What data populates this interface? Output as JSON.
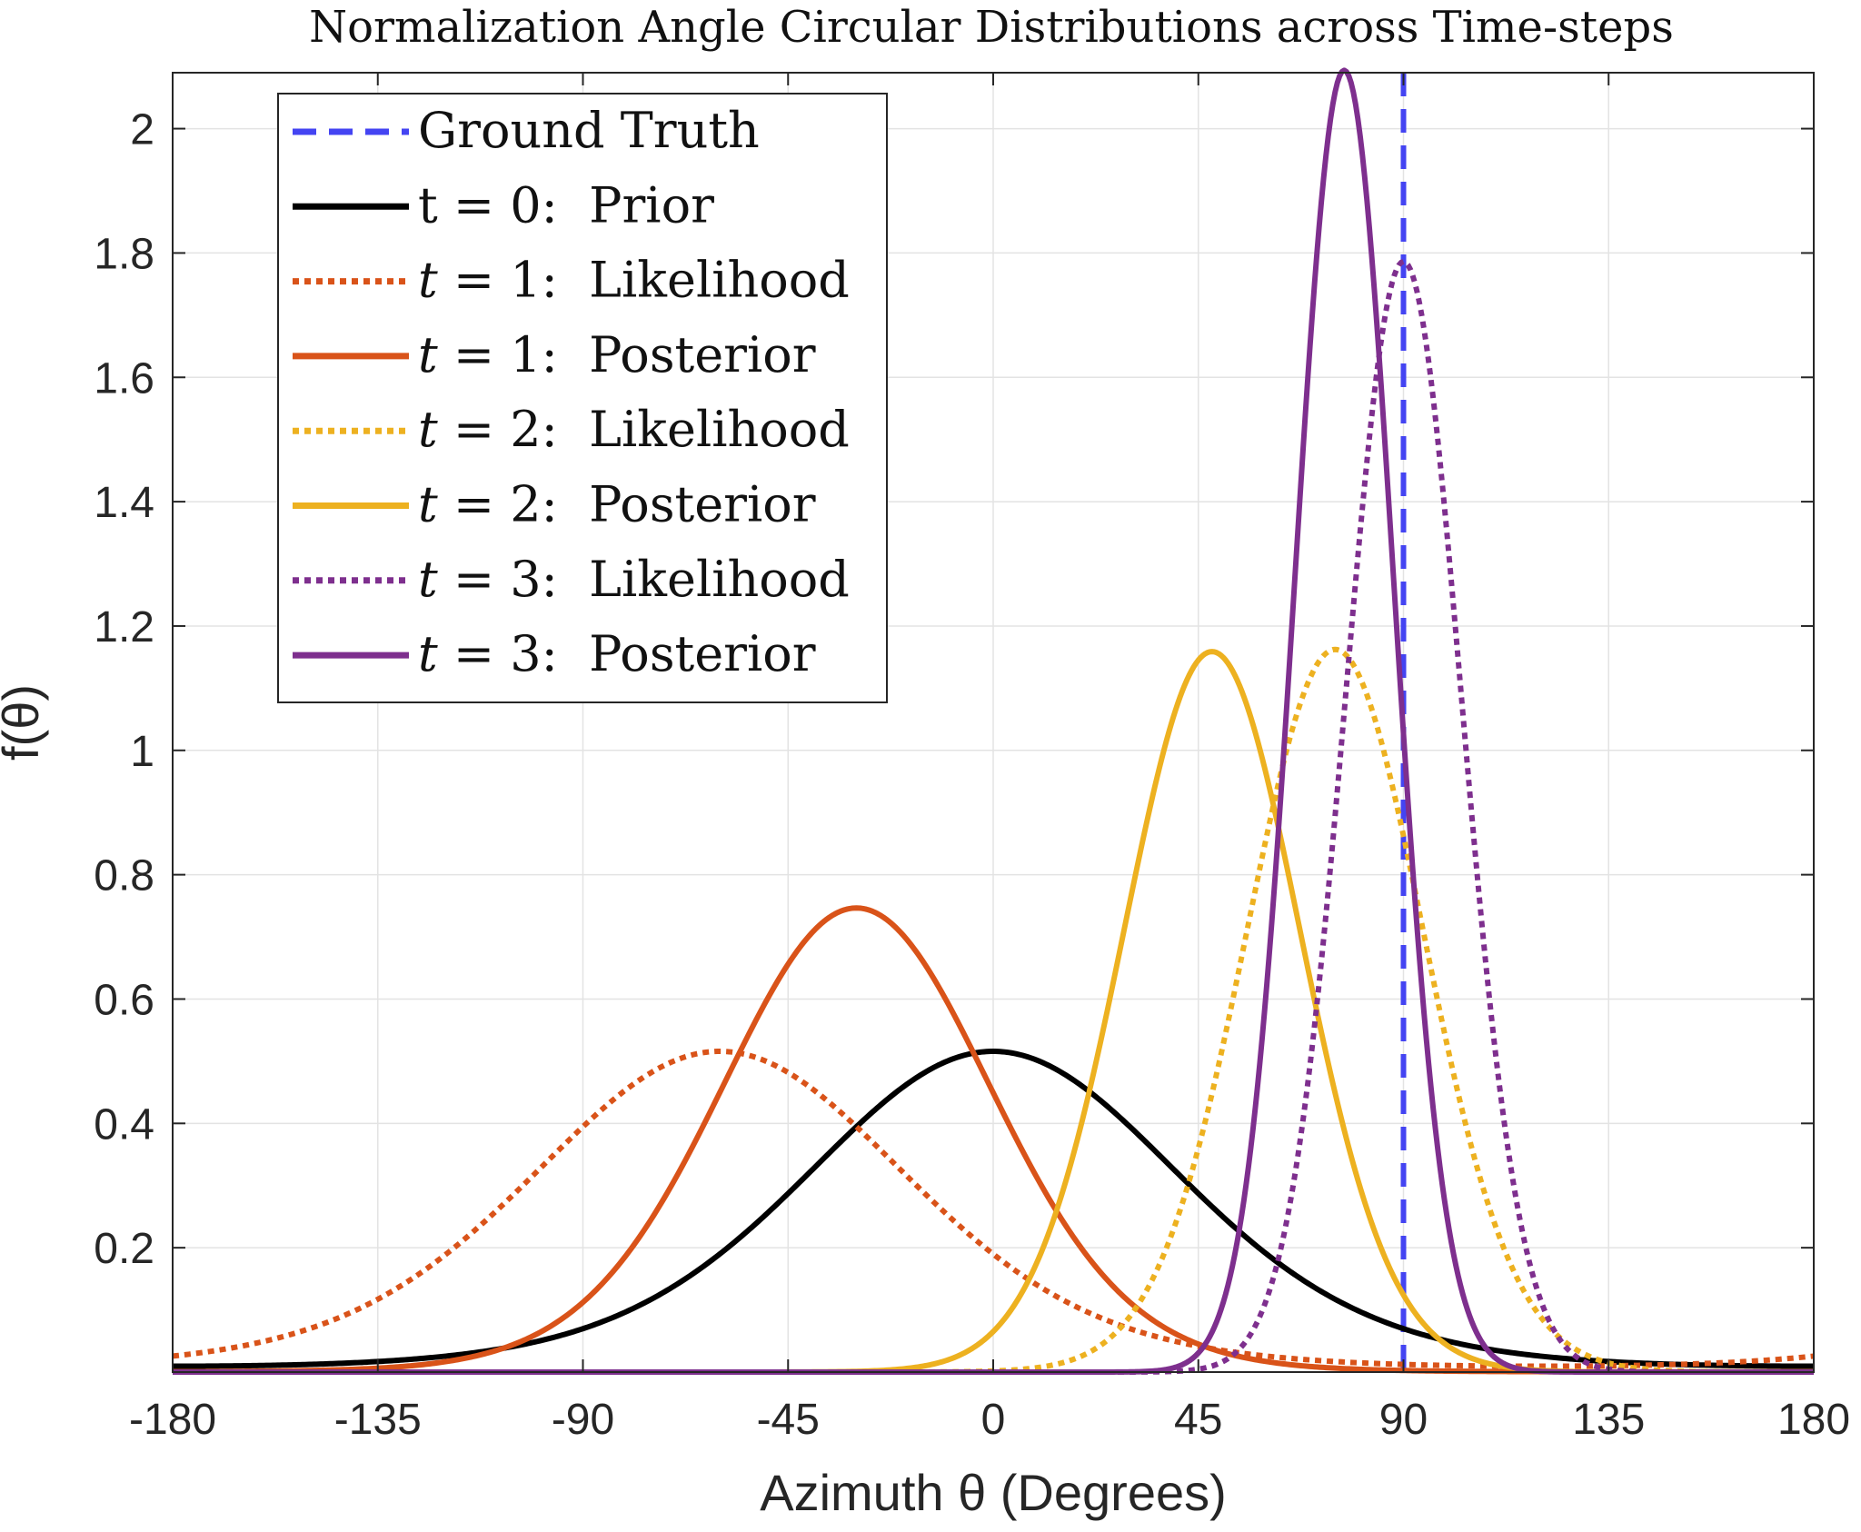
{
  "chart_data": {
    "type": "line",
    "title": "Normalization Angle Circular Distributions across Time-steps",
    "xlabel": "Azimuth θ (Degrees)",
    "ylabel": "f(θ)",
    "xlim": [
      -180,
      180
    ],
    "ylim": [
      0,
      2.09
    ],
    "grid": true,
    "legend_position": "top-left",
    "x_ticks": [
      -180,
      -135,
      -90,
      -45,
      0,
      45,
      90,
      135,
      180
    ],
    "x_tick_labels": [
      "-180",
      "-135",
      "-90",
      "-45",
      "0",
      "45",
      "90",
      "135",
      "180"
    ],
    "y_ticks": [
      0.2,
      0.4,
      0.6,
      0.8,
      1.0,
      1.2,
      1.4,
      1.6,
      1.8,
      2.0
    ],
    "y_tick_labels": [
      "0.2",
      "0.4",
      "0.6",
      "0.8",
      "1",
      "1.2",
      "1.4",
      "1.6",
      "1.8",
      "2"
    ],
    "series": [
      {
        "name": "Ground Truth",
        "label_main": "Ground Truth",
        "label_var": "",
        "kind": "vline",
        "x": 90,
        "color": "#4444f2",
        "dash": "dashed"
      },
      {
        "name": "t = 0: Prior",
        "label_main": "t = 0:  Prior",
        "label_var": "",
        "kind": "vonmises",
        "mu": 0,
        "kappa": 2.0,
        "color": "#000000",
        "dash": "solid"
      },
      {
        "name": "t = 1: Likelihood",
        "label_main": " = 1:  Likelihood",
        "label_var": "t",
        "kind": "vonmises",
        "mu": -60,
        "kappa": 2.0,
        "color": "#d95319",
        "dash": "dotted"
      },
      {
        "name": "t = 1: Posterior",
        "label_main": " = 1:  Posterior",
        "label_var": "t",
        "kind": "vonmises",
        "mu": -30,
        "kappa": 3.79,
        "color": "#d95319",
        "dash": "solid"
      },
      {
        "name": "t = 2: Likelihood",
        "label_main": " = 2:  Likelihood",
        "label_var": "t",
        "kind": "vonmises",
        "mu": 75,
        "kappa": 8.75,
        "color": "#edb120",
        "dash": "dotted"
      },
      {
        "name": "t = 2: Posterior",
        "label_main": " = 2:  Posterior",
        "label_var": "t",
        "kind": "vonmises",
        "mu": 48,
        "kappa": 8.7,
        "color": "#edb120",
        "dash": "solid"
      },
      {
        "name": "t = 3: Likelihood",
        "label_main": " = 3:  Likelihood",
        "label_var": "t",
        "kind": "vonmises",
        "mu": 90,
        "kappa": 20.3,
        "color": "#7e2f8e",
        "dash": "dotted"
      },
      {
        "name": "t = 3: Posterior",
        "label_main": " = 3:  Posterior",
        "label_var": "t",
        "kind": "vonmises",
        "mu": 77,
        "kappa": 27.8,
        "color": "#7e2f8e",
        "dash": "solid"
      }
    ]
  }
}
